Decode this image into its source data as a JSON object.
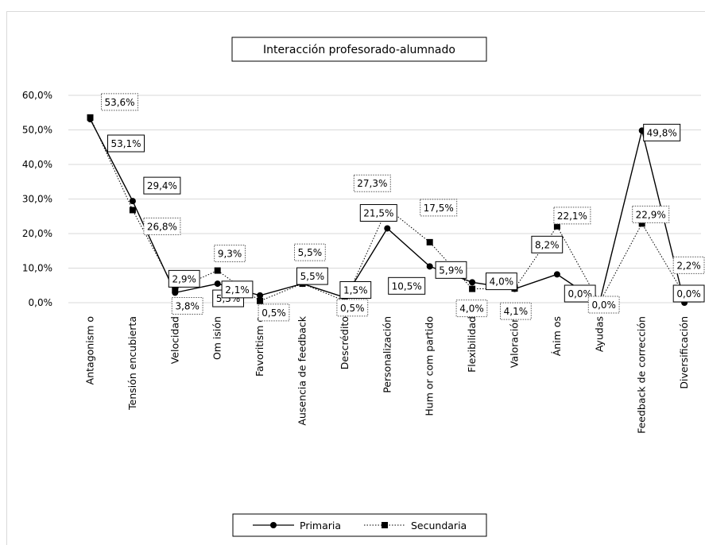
{
  "chart_data": {
    "type": "line",
    "title": "Interacción profesorado-alumnado",
    "categories": [
      "Antagonism o",
      "Tensión encubierta",
      "Velocidad",
      "Om isión",
      "Favoritism o",
      "Ausencia de feedback",
      "Descrédito",
      "Personalización",
      "Hum or com partido",
      "Flexibilidad",
      "Valoración",
      "Ánim os",
      "Ayudas",
      "Feedback de corrección",
      "Diversificación"
    ],
    "y_ticks": [
      "60,0%",
      "50,0%",
      "40,0%",
      "30,0%",
      "20,0%",
      "10,0%",
      "0,0%"
    ],
    "ylim": [
      0,
      60
    ],
    "grid": true,
    "legend_position": "bottom",
    "series": [
      {
        "name": "Primaria",
        "style": "solid",
        "marker": "circle",
        "color": "#000000",
        "values": [
          53.1,
          29.4,
          2.9,
          5.5,
          2.1,
          5.5,
          1.5,
          21.5,
          10.5,
          5.9,
          4.0,
          8.2,
          0.0,
          49.8,
          0.0
        ],
        "labels": [
          "53,1%",
          "29,4%",
          "2,9%",
          "5,5%",
          "2,1%",
          "5,5%",
          "1,5%",
          "21,5%",
          "10,5%",
          "5,9%",
          "4,0%",
          "8,2%",
          "0,0%",
          "49,8%",
          "0,0%"
        ]
      },
      {
        "name": "Secundaria",
        "style": "dotted",
        "marker": "square",
        "color": "#000000",
        "values": [
          53.6,
          26.8,
          3.8,
          9.3,
          0.5,
          5.5,
          0.5,
          27.3,
          17.5,
          4.0,
          4.1,
          22.1,
          0.0,
          22.9,
          2.2
        ],
        "labels": [
          "53,6%",
          "26,8%",
          "3,8%",
          "9,3%",
          "0,5%",
          "5,5%",
          "0,5%",
          "27,3%",
          "17,5%",
          "4,0%",
          "4,1%",
          "22,1%",
          "0,0%",
          "22,9%",
          "2,2%"
        ]
      }
    ]
  }
}
